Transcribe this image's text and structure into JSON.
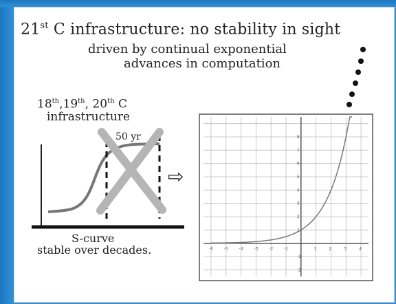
{
  "slide": {
    "title_prefix": "21",
    "title_sup": "st",
    "title_rest": " C infrastructure: no stability in sight",
    "subtitle_line1": "driven by continual exponential",
    "subtitle_line2": "advances in computation",
    "era_label_a": "18",
    "era_sup_a": "th",
    "era_label_b": ",19",
    "era_sup_b": "th",
    "era_label_c": ", 20",
    "era_sup_c": "th",
    "era_label_d": " C",
    "era_label_line2": "infrastructure",
    "window_label": "50 yr",
    "s_curve_label": "S-curve",
    "s_curve_caption": "stable over decades.",
    "arrow_symbol": "⇨"
  },
  "chart_data": {
    "type": "line",
    "function": "exponential",
    "x_ticks": [
      "-6",
      "-5",
      "-4",
      "-3",
      "-2",
      "-1",
      "1",
      "2",
      "3",
      "4"
    ],
    "y_ticks": [
      "-2",
      "-1",
      "1",
      "2",
      "3",
      "4",
      "5",
      "6",
      "7",
      "8"
    ],
    "x": [
      -6,
      -5,
      -4,
      -3,
      -2,
      -1,
      0,
      1,
      2,
      3,
      3.4
    ],
    "y": [
      0.015,
      0.03,
      0.06,
      0.12,
      0.25,
      0.5,
      1,
      2,
      4,
      8,
      10.5
    ],
    "xlim": [
      -6.5,
      4.5
    ],
    "ylim": [
      -2.5,
      9.5
    ],
    "grid": true
  }
}
